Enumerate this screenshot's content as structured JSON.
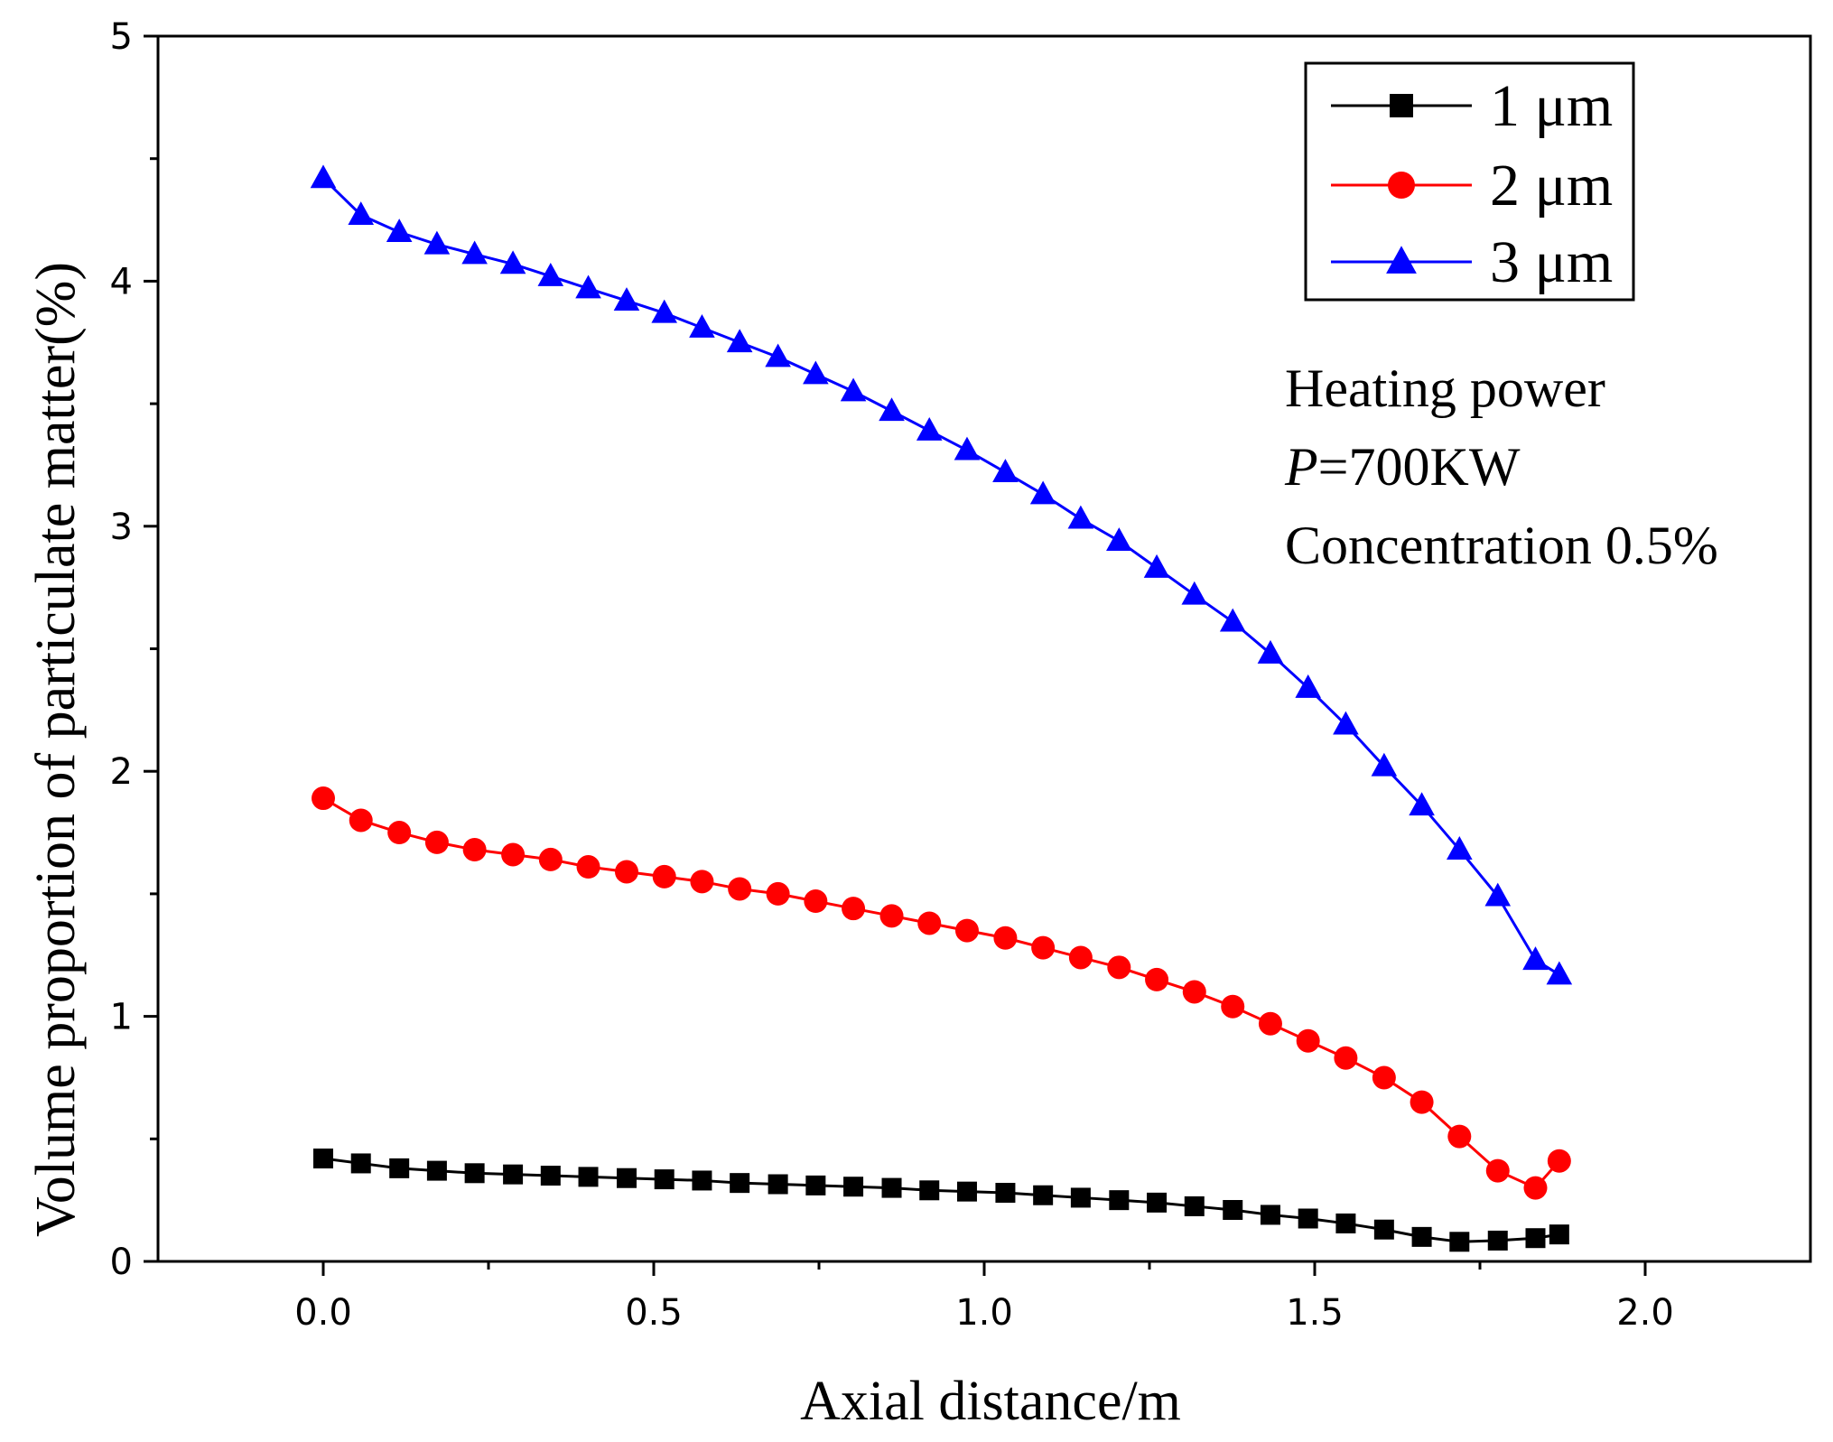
{
  "chart_data": {
    "type": "line",
    "xlabel": "Axial distance/m",
    "ylabel": "Volume proportion of particulate matter(%)",
    "xlim": [
      -0.25,
      2.25
    ],
    "ylim": [
      0,
      5
    ],
    "x_ticks": [
      "0.0",
      "0.5",
      "1.0",
      "1.5",
      "2.0"
    ],
    "x_tick_values": [
      0,
      0.5,
      1.0,
      1.5,
      2.0
    ],
    "y_ticks": [
      "0",
      "1",
      "2",
      "3",
      "4",
      "5"
    ],
    "y_tick_values": [
      0,
      1,
      2,
      3,
      4,
      5
    ],
    "grid": false,
    "legend_position": "top-right",
    "x": [
      0,
      0.057,
      0.115,
      0.172,
      0.229,
      0.287,
      0.344,
      0.401,
      0.459,
      0.516,
      0.573,
      0.63,
      0.688,
      0.745,
      0.802,
      0.86,
      0.917,
      0.974,
      1.032,
      1.089,
      1.146,
      1.204,
      1.261,
      1.318,
      1.376,
      1.433,
      1.49,
      1.547,
      1.605,
      1.662,
      1.719,
      1.777,
      1.834,
      1.87
    ],
    "series": [
      {
        "name": "1 μm",
        "color": "#000000",
        "marker": "square",
        "values": [
          0.42,
          0.4,
          0.38,
          0.37,
          0.36,
          0.355,
          0.35,
          0.345,
          0.34,
          0.335,
          0.33,
          0.32,
          0.315,
          0.31,
          0.305,
          0.3,
          0.29,
          0.285,
          0.28,
          0.27,
          0.26,
          0.25,
          0.24,
          0.225,
          0.21,
          0.19,
          0.175,
          0.155,
          0.13,
          0.1,
          0.08,
          0.085,
          0.095,
          0.11
        ]
      },
      {
        "name": "2 μm",
        "color": "#ff0000",
        "marker": "circle",
        "values": [
          1.89,
          1.8,
          1.75,
          1.71,
          1.68,
          1.66,
          1.64,
          1.61,
          1.59,
          1.57,
          1.55,
          1.52,
          1.5,
          1.47,
          1.44,
          1.41,
          1.38,
          1.35,
          1.32,
          1.28,
          1.24,
          1.2,
          1.15,
          1.1,
          1.04,
          0.97,
          0.9,
          0.83,
          0.75,
          0.65,
          0.51,
          0.37,
          0.3,
          0.41
        ]
      },
      {
        "name": "3 μm",
        "color": "#0000ff",
        "marker": "triangle",
        "values": [
          4.42,
          4.27,
          4.2,
          4.15,
          4.11,
          4.07,
          4.02,
          3.97,
          3.92,
          3.87,
          3.81,
          3.75,
          3.69,
          3.62,
          3.55,
          3.47,
          3.39,
          3.31,
          3.22,
          3.13,
          3.03,
          2.94,
          2.83,
          2.72,
          2.61,
          2.48,
          2.34,
          2.19,
          2.02,
          1.86,
          1.68,
          1.49,
          1.23,
          1.17
        ]
      }
    ],
    "annotation": {
      "line1": "Heating power",
      "line2_italic": "P",
      "line2_rest": "=700KW",
      "line3": "Concentration 0.5%"
    }
  }
}
